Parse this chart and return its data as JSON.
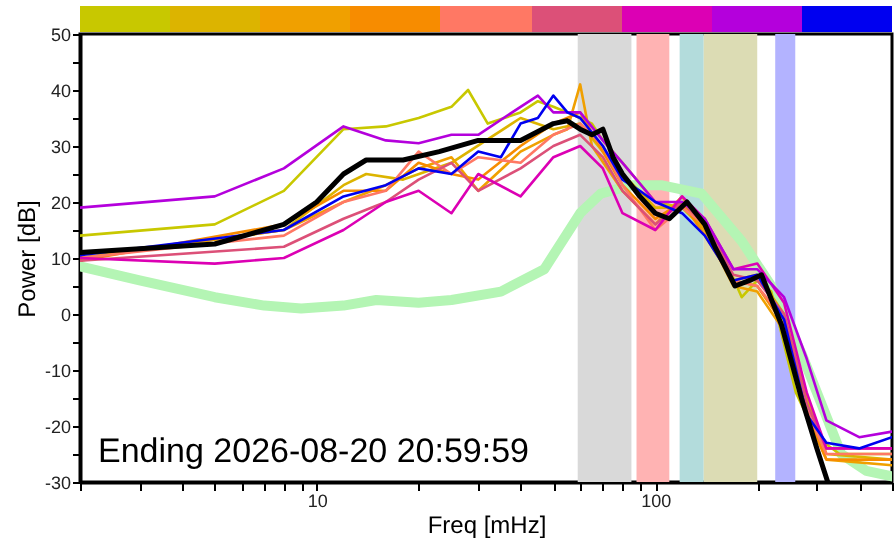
{
  "chart_data": {
    "type": "line",
    "xlabel": "Freq [mHz]",
    "ylabel": "Power [dB]",
    "log": "x",
    "grid": false,
    "xlim": [
      2,
      500
    ],
    "xticks": [
      {
        "value": 2,
        "label": null
      },
      {
        "value": 3,
        "label": null
      },
      {
        "value": 4,
        "label": null
      },
      {
        "value": 5,
        "label": null
      },
      {
        "value": 6,
        "label": null
      },
      {
        "value": 7,
        "label": null
      },
      {
        "value": 8,
        "label": null
      },
      {
        "value": 9,
        "label": null
      },
      10,
      {
        "value": 20,
        "label": null
      },
      {
        "value": 30,
        "label": null
      },
      {
        "value": 40,
        "label": null
      },
      {
        "value": 50,
        "label": null
      },
      {
        "value": 60,
        "label": null
      },
      {
        "value": 70,
        "label": null
      },
      {
        "value": 80,
        "label": null
      },
      {
        "value": 90,
        "label": null
      },
      100,
      {
        "value": 200,
        "label": null
      },
      {
        "value": 300,
        "label": null
      },
      {
        "value": 400,
        "label": null
      },
      {
        "value": 500,
        "label": null
      }
    ],
    "ylim": [
      -30,
      50
    ],
    "yticks": [
      -30,
      {
        "value": -25,
        "label": null
      },
      -20,
      {
        "value": -15,
        "label": null
      },
      -10,
      {
        "value": -5,
        "label": null
      },
      0,
      {
        "value": 5,
        "label": null
      },
      10,
      {
        "value": 15,
        "label": null
      },
      20,
      {
        "value": 25,
        "label": null
      },
      30,
      {
        "value": 35,
        "label": null
      },
      40,
      {
        "value": 45,
        "label": null
      },
      50
    ],
    "annotations": [
      "Ending 2026-08-20 20:59:59"
    ],
    "bands": [
      {
        "axis": "x",
        "from": 59,
        "to": 85,
        "color": "#d9d9d9"
      },
      {
        "axis": "x",
        "from": 88,
        "to": 110,
        "color": "#ffb3b3"
      },
      {
        "axis": "x",
        "from": 118,
        "to": 139,
        "color": "#b3dcdc"
      },
      {
        "axis": "x",
        "from": 139,
        "to": 200,
        "color": "#dcdcb4"
      },
      {
        "axis": "x",
        "from": 226,
        "to": 259,
        "color": "#b3b3ff"
      }
    ],
    "series": [
      {
        "color": "#b4f5b4",
        "x": [
          2,
          3,
          5,
          7,
          9,
          12,
          15,
          20,
          25,
          35,
          47,
          60,
          69,
          85,
          104,
          137,
          180,
          220,
          270,
          354,
          420,
          500
        ],
        "values": [
          8.5,
          6,
          3,
          1.5,
          1,
          1.5,
          2.5,
          2,
          2.5,
          4,
          8,
          18,
          21.5,
          23,
          23,
          21.5,
          13,
          5,
          -7,
          -25,
          -28,
          -29
        ]
      },
      {
        "color": "#c8c800",
        "x": [
          2,
          5,
          8,
          12,
          16,
          20,
          25,
          28,
          32,
          40,
          45,
          50,
          55,
          60,
          65,
          70,
          80,
          100,
          120,
          140,
          160,
          180,
          200,
          220,
          260,
          300,
          350,
          500
        ],
        "values": [
          14,
          16,
          22,
          33,
          33.5,
          35,
          37,
          40,
          34,
          36,
          38,
          37,
          36,
          35,
          34,
          31,
          27,
          20,
          19,
          17,
          10,
          3,
          6,
          4,
          -14,
          -22,
          -25,
          -25
        ]
      },
      {
        "color": "#dcb400",
        "x": [
          2,
          8,
          12,
          14,
          18,
          25,
          40,
          50,
          60,
          70,
          80,
          100,
          120,
          140,
          170,
          200,
          240,
          280,
          320,
          500
        ],
        "values": [
          10,
          15,
          23,
          25,
          24,
          27,
          35,
          33,
          34,
          29,
          25,
          19,
          19,
          15,
          6,
          7,
          0,
          -15,
          -25,
          -26
        ]
      },
      {
        "color": "#f0a000",
        "x": [
          2,
          8,
          12,
          16,
          20,
          25,
          30,
          40,
          50,
          55,
          60,
          65,
          80,
          100,
          120,
          140,
          170,
          200,
          240,
          280,
          320,
          500
        ],
        "values": [
          10,
          15,
          20,
          23,
          26,
          28,
          22,
          29,
          32,
          33,
          41,
          30,
          22,
          16,
          21,
          15,
          5,
          4,
          -3,
          -18,
          -26,
          -27
        ]
      },
      {
        "color": "#f78c00",
        "x": [
          2,
          8,
          12,
          16,
          20,
          25,
          30,
          40,
          50,
          60,
          70,
          80,
          100,
          120,
          140,
          170,
          200,
          240,
          280,
          320,
          500
        ],
        "values": [
          9.5,
          16,
          22,
          22,
          27,
          25,
          24,
          30,
          34,
          36,
          29,
          23,
          17,
          20,
          14,
          6,
          5,
          -2,
          -18,
          -26,
          -26
        ]
      },
      {
        "color": "#ff7864",
        "x": [
          2,
          8,
          12,
          16,
          20,
          25,
          30,
          40,
          50,
          60,
          70,
          80,
          100,
          120,
          140,
          170,
          200,
          240,
          280,
          320,
          500
        ],
        "values": [
          10,
          14,
          20,
          22,
          29,
          25,
          28,
          27,
          32,
          34,
          30,
          23,
          15,
          19,
          16,
          6,
          5,
          -1,
          -17,
          -25,
          -25
        ]
      },
      {
        "color": "#dc5078",
        "x": [
          2,
          8,
          12,
          16,
          20,
          25,
          30,
          40,
          50,
          60,
          70,
          80,
          100,
          120,
          140,
          170,
          200,
          240,
          280,
          320,
          500
        ],
        "values": [
          9.5,
          12,
          17,
          20,
          24,
          27,
          22,
          26,
          30,
          32,
          28,
          22,
          16,
          20,
          16,
          7,
          6,
          0,
          -16,
          -24,
          -24
        ]
      },
      {
        "color": "#dc00b4",
        "x": [
          2,
          5,
          8,
          12,
          16,
          20,
          25,
          30,
          40,
          50,
          60,
          70,
          80,
          100,
          120,
          140,
          170,
          200,
          240,
          280,
          320,
          500
        ],
        "values": [
          10,
          9,
          10,
          15,
          20,
          22,
          18,
          25,
          21,
          28,
          30,
          26,
          18,
          15,
          21,
          17,
          8,
          9,
          2,
          -14,
          -24,
          -24
        ]
      },
      {
        "color": "#b400dc",
        "x": [
          2,
          5,
          8,
          12,
          16,
          20,
          25,
          30,
          40,
          45,
          50,
          60,
          70,
          80,
          100,
          120,
          140,
          170,
          200,
          240,
          280,
          320,
          400,
          500
        ],
        "values": [
          19,
          21,
          26,
          33.5,
          31,
          30.5,
          32,
          32,
          37,
          39,
          36,
          36,
          31,
          27,
          20,
          20,
          17,
          8,
          8,
          3,
          -8,
          -19,
          -22,
          -21
        ]
      },
      {
        "color": "#0000f0",
        "x": [
          2,
          8,
          12,
          16,
          20,
          25,
          30,
          35,
          40,
          45,
          50,
          55,
          60,
          70,
          80,
          90,
          100,
          120,
          140,
          170,
          200,
          240,
          280,
          320,
          400,
          500
        ],
        "values": [
          10.5,
          15,
          21,
          23,
          26,
          25,
          29,
          28,
          34,
          35,
          39,
          36,
          35,
          30,
          24,
          22,
          20,
          18,
          14,
          6,
          7,
          -1,
          -18,
          -23,
          -24,
          -22
        ]
      },
      {
        "color": "#000000",
        "x": [
          2,
          5,
          8,
          10,
          12,
          14,
          18,
          23,
          30,
          40,
          50,
          55,
          60,
          65,
          70,
          75,
          80,
          90,
          100,
          110,
          124,
          140,
          150,
          172,
          190,
          206,
          236,
          270,
          300,
          323
        ],
        "values": [
          11,
          12.5,
          16,
          20,
          25,
          27.5,
          27.5,
          29,
          31,
          31,
          34,
          34.5,
          33,
          32,
          33,
          28,
          25,
          21,
          18,
          17,
          20,
          16,
          12,
          5,
          6,
          7,
          -2,
          -15,
          -24,
          -30
        ]
      }
    ]
  }
}
